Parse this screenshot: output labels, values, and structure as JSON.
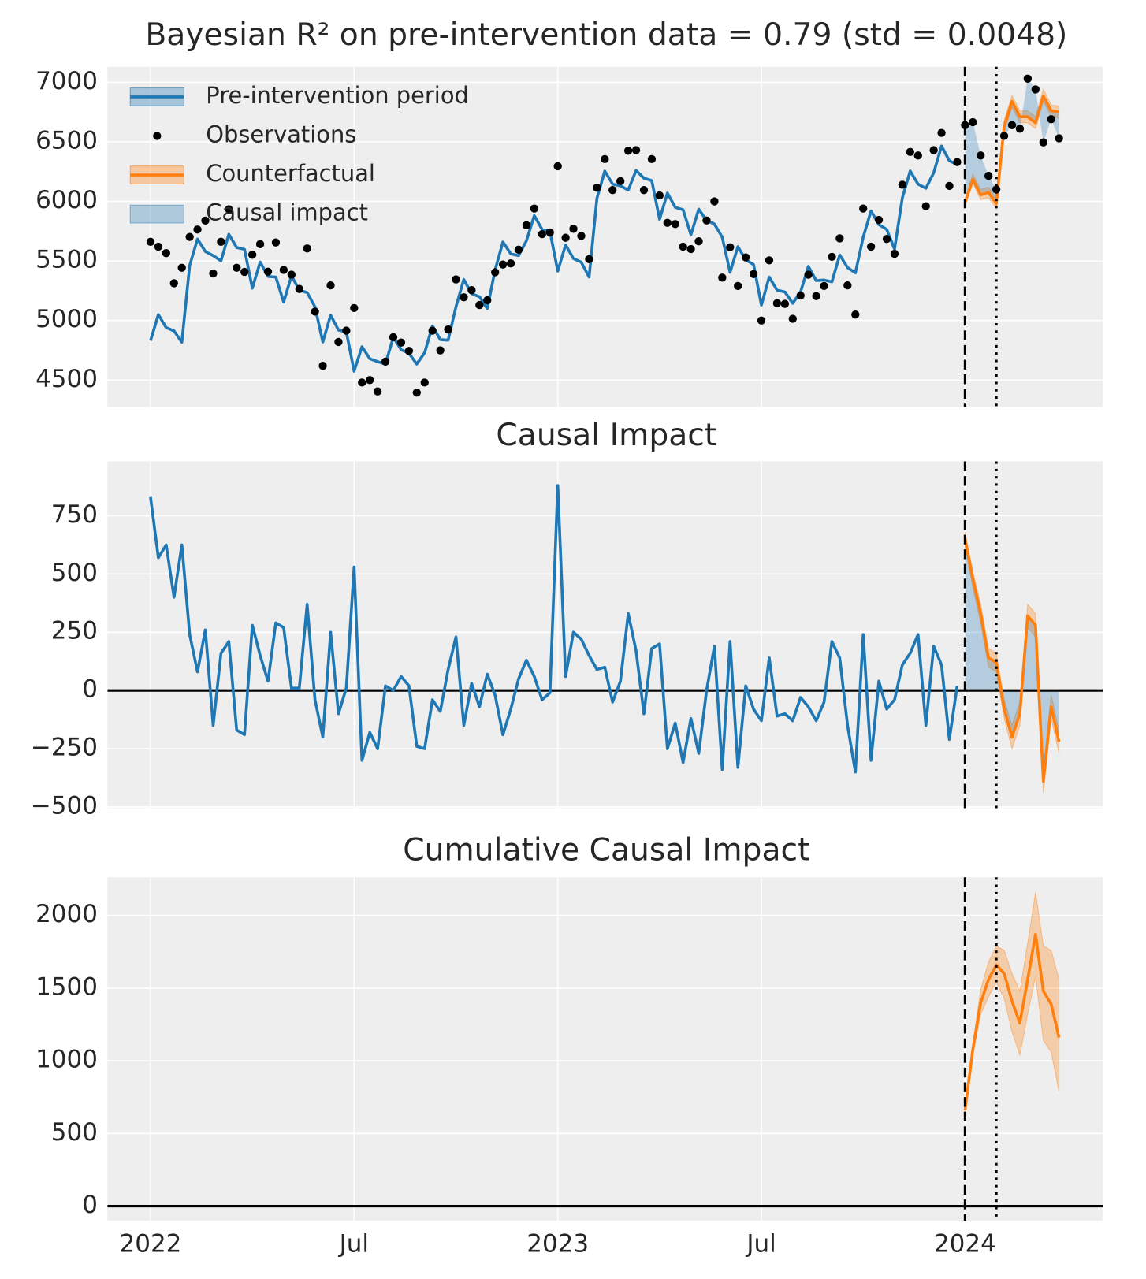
{
  "chart_data": [
    {
      "type": "line",
      "title": "Bayesian R² on pre-intervention data = 0.79 (std = 0.0048)",
      "xlim": [
        -5.5,
        121.6
      ],
      "xticks": [
        0,
        26,
        52,
        78,
        104
      ],
      "xticklabels": false,
      "ylim": [
        4275,
        7130
      ],
      "yticks": [
        4500,
        5000,
        5500,
        6000,
        6500,
        7000
      ],
      "grid": true,
      "vlines": [
        {
          "value": 104,
          "style": "dashed"
        },
        {
          "value": 108,
          "style": "dotted"
        }
      ],
      "legend": "upper left",
      "series": [
        {
          "name": "Pre-intervention period",
          "color": "#1f77b4",
          "x": [
            0,
            1,
            2,
            3,
            4,
            5,
            6,
            7,
            8,
            9,
            10,
            11,
            12,
            13,
            14,
            15,
            16,
            17,
            18,
            19,
            20,
            21,
            22,
            23,
            24,
            25,
            26,
            27,
            28,
            29,
            30,
            31,
            32,
            33,
            34,
            35,
            36,
            37,
            38,
            39,
            40,
            41,
            42,
            43,
            44,
            45,
            46,
            47,
            48,
            49,
            50,
            51,
            52,
            53,
            54,
            55,
            56,
            57,
            58,
            59,
            60,
            61,
            62,
            63,
            64,
            65,
            66,
            67,
            68,
            69,
            70,
            71,
            72,
            73,
            74,
            75,
            76,
            77,
            78,
            79,
            80,
            81,
            82,
            83,
            84,
            85,
            86,
            87,
            88,
            89,
            90,
            91,
            92,
            93,
            94,
            95,
            96,
            97,
            98,
            99,
            100,
            101,
            102,
            103
          ],
          "values": [
            4831,
            5050,
            4941,
            4913,
            4818,
            5462,
            5684,
            5579,
            5545,
            5501,
            5724,
            5613,
            5598,
            5272,
            5491,
            5370,
            5365,
            5155,
            5375,
            5255,
            5235,
            5115,
            4820,
            5045,
            4920,
            4905,
            4575,
            4780,
            4680,
            4655,
            4635,
            4860,
            4755,
            4725,
            4635,
            4730,
            4955,
            4840,
            4835,
            5115,
            5345,
            5225,
            5200,
            5100,
            5425,
            5660,
            5560,
            5545,
            5670,
            5880,
            5765,
            5750,
            5415,
            5635,
            5520,
            5490,
            5365,
            6025,
            6255,
            6145,
            6130,
            6095,
            6260,
            6195,
            6175,
            5850,
            6070,
            5950,
            5930,
            5720,
            5935,
            5840,
            5810,
            5700,
            5405,
            5620,
            5510,
            5470,
            5130,
            5365,
            5255,
            5240,
            5145,
            5240,
            5455,
            5335,
            5340,
            5325,
            5550,
            5445,
            5400,
            5700,
            5920,
            5805,
            5765,
            5600,
            6030,
            6255,
            6145,
            6110,
            6240,
            6465,
            6340,
            6310
          ]
        },
        {
          "name": "Observations",
          "type": "scatter",
          "color": "#000000",
          "x": [
            0,
            1,
            2,
            3,
            4,
            5,
            6,
            7,
            8,
            9,
            10,
            11,
            12,
            13,
            14,
            15,
            16,
            17,
            18,
            19,
            20,
            21,
            22,
            23,
            24,
            25,
            26,
            27,
            28,
            29,
            30,
            31,
            32,
            33,
            34,
            35,
            36,
            37,
            38,
            39,
            40,
            41,
            42,
            43,
            44,
            45,
            46,
            47,
            48,
            49,
            50,
            51,
            52,
            53,
            54,
            55,
            56,
            57,
            58,
            59,
            60,
            61,
            62,
            63,
            64,
            65,
            66,
            67,
            68,
            69,
            70,
            71,
            72,
            73,
            74,
            75,
            76,
            77,
            78,
            79,
            80,
            81,
            82,
            83,
            84,
            85,
            86,
            87,
            88,
            89,
            90,
            91,
            92,
            93,
            94,
            95,
            96,
            97,
            98,
            99,
            100,
            101,
            102,
            103,
            104,
            105,
            106,
            107,
            108,
            109,
            110,
            111,
            112,
            113,
            114,
            115,
            116
          ],
          "values": [
            5661,
            5620,
            5566,
            5313,
            5443,
            5702,
            5764,
            5839,
            5395,
            5661,
            5934,
            5443,
            5408,
            5552,
            5641,
            5410,
            5655,
            5425,
            5385,
            5265,
            5605,
            5075,
            4620,
            5295,
            4820,
            4915,
            5105,
            4480,
            4500,
            4405,
            4655,
            4860,
            4815,
            4745,
            4395,
            4480,
            4915,
            4750,
            4925,
            5345,
            5195,
            5255,
            5130,
            5170,
            5405,
            5470,
            5480,
            5595,
            5800,
            5940,
            5725,
            5740,
            6295,
            5695,
            5770,
            5710,
            5515,
            6115,
            6355,
            6095,
            6170,
            6425,
            6430,
            6095,
            6355,
            6050,
            5820,
            5810,
            5620,
            5600,
            5665,
            5840,
            6000,
            5360,
            5615,
            5290,
            5530,
            5390,
            5000,
            5505,
            5145,
            5140,
            5015,
            5210,
            5385,
            5205,
            5290,
            5535,
            5690,
            5295,
            5050,
            5940,
            5620,
            5845,
            5685,
            5560,
            6140,
            6415,
            6385,
            5960,
            6430,
            6575,
            6130,
            6330,
            6640,
            6665,
            6385,
            6215,
            6100,
            6550,
            6640,
            6610,
            7030,
            6940,
            6495,
            6690,
            6530
          ]
        },
        {
          "name": "Counterfactual",
          "color": "#ff7f0e",
          "x": [
            104,
            105,
            106,
            107,
            108,
            109,
            110,
            111,
            112,
            113,
            114,
            115,
            116
          ],
          "values": [
            5990,
            6185,
            6055,
            6075,
            5980,
            6630,
            6840,
            6710,
            6710,
            6660,
            6885,
            6760,
            6750
          ],
          "lower": [
            5960,
            6150,
            6015,
            6030,
            5940,
            6590,
            6790,
            6660,
            6660,
            6610,
            6840,
            6710,
            6700
          ],
          "upper": [
            6020,
            6230,
            6100,
            6120,
            6030,
            6680,
            6890,
            6760,
            6760,
            6710,
            6940,
            6810,
            6800
          ]
        },
        {
          "name": "Causal impact",
          "type": "fill",
          "color": "#1f77b4",
          "between": [
            1,
            2
          ]
        }
      ]
    },
    {
      "type": "line",
      "title": "Causal Impact",
      "xlim": [
        -5.5,
        121.6
      ],
      "xticks": [
        0,
        26,
        52,
        78,
        104
      ],
      "xticklabels": false,
      "ylim": [
        -505,
        983
      ],
      "yticks": [
        {
          "value": -500,
          "label": "−500"
        },
        {
          "value": -250,
          "label": "−250"
        },
        0,
        250,
        500,
        750
      ],
      "grid": true,
      "hline": 0,
      "vlines": [
        {
          "value": 104,
          "style": "dashed"
        },
        {
          "value": 108,
          "style": "dotted"
        }
      ],
      "series": [
        {
          "color": "#1f77b4",
          "x": [
            0,
            1,
            2,
            3,
            4,
            5,
            6,
            7,
            8,
            9,
            10,
            11,
            12,
            13,
            14,
            15,
            16,
            17,
            18,
            19,
            20,
            21,
            22,
            23,
            24,
            25,
            26,
            27,
            28,
            29,
            30,
            31,
            32,
            33,
            34,
            35,
            36,
            37,
            38,
            39,
            40,
            41,
            42,
            43,
            44,
            45,
            46,
            47,
            48,
            49,
            50,
            51,
            52,
            53,
            54,
            55,
            56,
            57,
            58,
            59,
            60,
            61,
            62,
            63,
            64,
            65,
            66,
            67,
            68,
            69,
            70,
            71,
            72,
            73,
            74,
            75,
            76,
            77,
            78,
            79,
            80,
            81,
            82,
            83,
            84,
            85,
            86,
            87,
            88,
            89,
            90,
            91,
            92,
            93,
            94,
            95,
            96,
            97,
            98,
            99,
            100,
            101,
            102,
            103
          ],
          "values": [
            830,
            570,
            625,
            400,
            625,
            240,
            80,
            260,
            -150,
            160,
            210,
            -170,
            -190,
            280,
            150,
            40,
            290,
            270,
            10,
            10,
            370,
            -40,
            -200,
            250,
            -100,
            10,
            530,
            -300,
            -180,
            -250,
            20,
            0,
            60,
            20,
            -240,
            -250,
            -40,
            -90,
            90,
            230,
            -150,
            30,
            -70,
            70,
            -20,
            -190,
            -80,
            50,
            130,
            60,
            -40,
            -10,
            880,
            60,
            250,
            220,
            150,
            90,
            100,
            -50,
            40,
            330,
            170,
            -100,
            180,
            200,
            -250,
            -140,
            -310,
            -120,
            -270,
            0,
            190,
            -340,
            210,
            -330,
            20,
            -80,
            -130,
            140,
            -110,
            -100,
            -130,
            -30,
            -70,
            -130,
            -50,
            210,
            140,
            -150,
            -350,
            240,
            -300,
            40,
            -80,
            -40,
            110,
            160,
            240,
            -150,
            190,
            110,
            -210,
            20
          ]
        },
        {
          "color": "#ff7f0e",
          "x": [
            104,
            105,
            106,
            107,
            108,
            109,
            110,
            111,
            112,
            113,
            114,
            115,
            116
          ],
          "values": [
            650,
            480,
            330,
            140,
            120,
            -80,
            -200,
            -100,
            320,
            280,
            -390,
            -70,
            -220
          ],
          "lower": [
            620,
            440,
            290,
            100,
            80,
            -120,
            -250,
            -150,
            270,
            230,
            -440,
            -120,
            -270
          ],
          "upper": [
            680,
            510,
            370,
            180,
            160,
            -40,
            -150,
            -50,
            370,
            330,
            -340,
            -20,
            -170
          ]
        },
        {
          "type": "fill",
          "color": "#1f77b4",
          "between": [
            1
          ]
        }
      ]
    },
    {
      "type": "line",
      "title": "Cumulative Causal Impact",
      "xlim": [
        -5.5,
        121.6
      ],
      "xticks": [
        {
          "value": 0,
          "label": "2022"
        },
        {
          "value": 26,
          "label": "Jul"
        },
        {
          "value": 52,
          "label": "2023"
        },
        {
          "value": 78,
          "label": "Jul"
        },
        {
          "value": 104,
          "label": "2024"
        }
      ],
      "ylim": [
        -100,
        2263
      ],
      "yticks": [
        0,
        500,
        1000,
        1500,
        2000
      ],
      "grid": true,
      "hline": 0,
      "vlines": [
        {
          "value": 104,
          "style": "dashed"
        },
        {
          "value": 108,
          "style": "dotted"
        }
      ],
      "series": [
        {
          "color": "#ff7f0e",
          "x": [
            104,
            105,
            106,
            107,
            108,
            109,
            110,
            111,
            112,
            113,
            114,
            115,
            116
          ],
          "values": [
            660,
            1080,
            1400,
            1560,
            1660,
            1600,
            1410,
            1260,
            1560,
            1870,
            1480,
            1390,
            1160
          ],
          "lower": [
            640,
            1040,
            1320,
            1440,
            1540,
            1430,
            1200,
            1040,
            1320,
            1580,
            1140,
            1060,
            790
          ],
          "upper": [
            690,
            1120,
            1490,
            1680,
            1790,
            1760,
            1600,
            1480,
            1810,
            2160,
            1790,
            1760,
            1560
          ]
        }
      ]
    }
  ]
}
